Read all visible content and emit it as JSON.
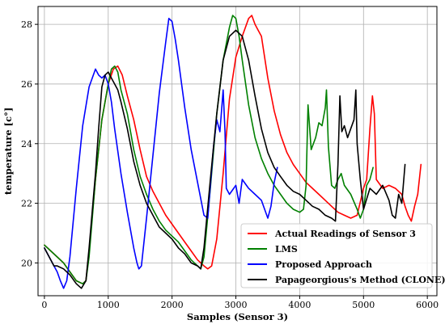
{
  "chart_data": {
    "type": "line",
    "title": "",
    "xlabel": "Samples (Sensor  3)",
    "ylabel": "temperature [c°]",
    "xlim": [
      -100,
      6150
    ],
    "ylim": [
      18.9,
      28.6
    ],
    "xticks": [
      0,
      1000,
      2000,
      3000,
      4000,
      5000,
      6000
    ],
    "yticks": [
      20,
      22,
      24,
      26,
      28
    ],
    "grid": true,
    "legend_position": "lower-right",
    "series": [
      {
        "name": "Actual Readings of Sensor 3",
        "color": "#ff0000",
        "points": [
          [
            0,
            20.6
          ],
          [
            100,
            20.4
          ],
          [
            200,
            20.2
          ],
          [
            300,
            20.0
          ],
          [
            400,
            19.7
          ],
          [
            500,
            19.4
          ],
          [
            600,
            19.3
          ],
          [
            650,
            19.4
          ],
          [
            700,
            20.4
          ],
          [
            800,
            22.8
          ],
          [
            900,
            24.8
          ],
          [
            1000,
            26.0
          ],
          [
            1080,
            26.5
          ],
          [
            1150,
            26.6
          ],
          [
            1220,
            26.3
          ],
          [
            1300,
            25.6
          ],
          [
            1400,
            24.8
          ],
          [
            1500,
            23.8
          ],
          [
            1600,
            22.9
          ],
          [
            1700,
            22.4
          ],
          [
            1800,
            22.0
          ],
          [
            1900,
            21.6
          ],
          [
            2000,
            21.3
          ],
          [
            2100,
            21.0
          ],
          [
            2200,
            20.7
          ],
          [
            2300,
            20.4
          ],
          [
            2400,
            20.1
          ],
          [
            2500,
            19.9
          ],
          [
            2560,
            19.8
          ],
          [
            2620,
            19.9
          ],
          [
            2700,
            20.8
          ],
          [
            2800,
            23.0
          ],
          [
            2900,
            25.5
          ],
          [
            3000,
            26.9
          ],
          [
            3100,
            27.6
          ],
          [
            3200,
            28.2
          ],
          [
            3250,
            28.3
          ],
          [
            3300,
            28.0
          ],
          [
            3350,
            27.8
          ],
          [
            3400,
            27.6
          ],
          [
            3500,
            26.2
          ],
          [
            3600,
            25.1
          ],
          [
            3700,
            24.3
          ],
          [
            3800,
            23.7
          ],
          [
            3900,
            23.3
          ],
          [
            4000,
            23.0
          ],
          [
            4100,
            22.7
          ],
          [
            4200,
            22.5
          ],
          [
            4300,
            22.3
          ],
          [
            4400,
            22.1
          ],
          [
            4500,
            21.9
          ],
          [
            4600,
            21.7
          ],
          [
            4700,
            21.6
          ],
          [
            4800,
            21.5
          ],
          [
            4900,
            21.6
          ],
          [
            5000,
            22.5
          ],
          [
            5050,
            22.8
          ],
          [
            5100,
            24.5
          ],
          [
            5140,
            25.6
          ],
          [
            5170,
            25.0
          ],
          [
            5200,
            22.8
          ],
          [
            5300,
            22.5
          ],
          [
            5400,
            22.6
          ],
          [
            5500,
            22.5
          ],
          [
            5600,
            22.3
          ],
          [
            5650,
            21.9
          ],
          [
            5700,
            21.6
          ],
          [
            5750,
            21.4
          ],
          [
            5800,
            21.9
          ],
          [
            5850,
            22.3
          ],
          [
            5900,
            23.3
          ]
        ]
      },
      {
        "name": "LMS",
        "color": "#008000",
        "points": [
          [
            0,
            20.6
          ],
          [
            100,
            20.4
          ],
          [
            200,
            20.2
          ],
          [
            300,
            20.0
          ],
          [
            400,
            19.7
          ],
          [
            500,
            19.4
          ],
          [
            600,
            19.3
          ],
          [
            650,
            19.4
          ],
          [
            700,
            20.2
          ],
          [
            800,
            22.8
          ],
          [
            900,
            24.8
          ],
          [
            1000,
            26.0
          ],
          [
            1050,
            26.5
          ],
          [
            1100,
            26.6
          ],
          [
            1150,
            26.4
          ],
          [
            1200,
            25.8
          ],
          [
            1300,
            25.0
          ],
          [
            1400,
            23.8
          ],
          [
            1500,
            22.9
          ],
          [
            1600,
            22.3
          ],
          [
            1700,
            21.8
          ],
          [
            1800,
            21.4
          ],
          [
            1900,
            21.1
          ],
          [
            2000,
            20.9
          ],
          [
            2100,
            20.7
          ],
          [
            2200,
            20.4
          ],
          [
            2300,
            20.1
          ],
          [
            2400,
            19.9
          ],
          [
            2450,
            19.8
          ],
          [
            2500,
            20.2
          ],
          [
            2600,
            22.5
          ],
          [
            2700,
            25.0
          ],
          [
            2800,
            26.8
          ],
          [
            2900,
            27.9
          ],
          [
            2950,
            28.3
          ],
          [
            3000,
            28.2
          ],
          [
            3050,
            27.6
          ],
          [
            3100,
            26.8
          ],
          [
            3200,
            25.3
          ],
          [
            3300,
            24.2
          ],
          [
            3400,
            23.5
          ],
          [
            3500,
            23.0
          ],
          [
            3600,
            22.6
          ],
          [
            3700,
            22.3
          ],
          [
            3800,
            22.0
          ],
          [
            3900,
            21.8
          ],
          [
            4000,
            21.7
          ],
          [
            4060,
            21.8
          ],
          [
            4100,
            22.6
          ],
          [
            4130,
            25.3
          ],
          [
            4180,
            23.8
          ],
          [
            4250,
            24.2
          ],
          [
            4300,
            24.7
          ],
          [
            4350,
            24.6
          ],
          [
            4400,
            25.2
          ],
          [
            4420,
            25.8
          ],
          [
            4450,
            23.9
          ],
          [
            4500,
            22.6
          ],
          [
            4550,
            22.5
          ],
          [
            4600,
            22.8
          ],
          [
            4650,
            23.0
          ],
          [
            4700,
            22.6
          ],
          [
            4800,
            22.3
          ],
          [
            4900,
            21.8
          ],
          [
            4950,
            21.5
          ],
          [
            5000,
            21.8
          ],
          [
            5050,
            22.6
          ],
          [
            5100,
            22.8
          ],
          [
            5150,
            23.2
          ]
        ]
      },
      {
        "name": "Proposed Approach",
        "color": "#0000ff",
        "points": [
          [
            0,
            20.5
          ],
          [
            50,
            20.3
          ],
          [
            100,
            20.1
          ],
          [
            150,
            19.9
          ],
          [
            200,
            19.7
          ],
          [
            250,
            19.4
          ],
          [
            300,
            19.15
          ],
          [
            350,
            19.4
          ],
          [
            400,
            20.2
          ],
          [
            500,
            22.5
          ],
          [
            600,
            24.6
          ],
          [
            700,
            25.9
          ],
          [
            800,
            26.5
          ],
          [
            850,
            26.3
          ],
          [
            900,
            26.2
          ],
          [
            950,
            26.3
          ],
          [
            1000,
            26.0
          ],
          [
            1050,
            25.4
          ],
          [
            1100,
            24.5
          ],
          [
            1200,
            23.0
          ],
          [
            1300,
            21.7
          ],
          [
            1400,
            20.5
          ],
          [
            1450,
            20.0
          ],
          [
            1480,
            19.8
          ],
          [
            1520,
            19.9
          ],
          [
            1600,
            21.5
          ],
          [
            1700,
            23.6
          ],
          [
            1800,
            25.7
          ],
          [
            1900,
            27.4
          ],
          [
            1950,
            28.2
          ],
          [
            2000,
            28.1
          ],
          [
            2050,
            27.5
          ],
          [
            2100,
            26.8
          ],
          [
            2200,
            25.2
          ],
          [
            2300,
            23.8
          ],
          [
            2400,
            22.7
          ],
          [
            2500,
            21.6
          ],
          [
            2560,
            21.5
          ],
          [
            2600,
            22.6
          ],
          [
            2650,
            23.9
          ],
          [
            2700,
            24.8
          ],
          [
            2750,
            24.4
          ],
          [
            2800,
            25.8
          ],
          [
            2830,
            24.4
          ],
          [
            2850,
            22.5
          ],
          [
            2900,
            22.3
          ],
          [
            3000,
            22.6
          ],
          [
            3050,
            22.0
          ],
          [
            3100,
            22.8
          ],
          [
            3200,
            22.5
          ],
          [
            3300,
            22.3
          ],
          [
            3400,
            22.1
          ],
          [
            3500,
            21.5
          ],
          [
            3550,
            21.9
          ],
          [
            3600,
            22.7
          ],
          [
            3650,
            23.2
          ]
        ]
      },
      {
        "name": "Papageorgious's Method (CLONE)",
        "color": "#000000",
        "points": [
          [
            0,
            20.5
          ],
          [
            50,
            20.3
          ],
          [
            100,
            20.1
          ],
          [
            150,
            19.9
          ],
          [
            200,
            19.9
          ],
          [
            300,
            19.8
          ],
          [
            400,
            19.6
          ],
          [
            500,
            19.3
          ],
          [
            580,
            19.15
          ],
          [
            650,
            19.4
          ],
          [
            700,
            20.5
          ],
          [
            800,
            23.0
          ],
          [
            850,
            24.5
          ],
          [
            900,
            25.9
          ],
          [
            950,
            26.3
          ],
          [
            1000,
            26.4
          ],
          [
            1050,
            26.2
          ],
          [
            1100,
            26.0
          ],
          [
            1150,
            25.8
          ],
          [
            1200,
            25.4
          ],
          [
            1300,
            24.5
          ],
          [
            1400,
            23.4
          ],
          [
            1500,
            22.6
          ],
          [
            1600,
            22.0
          ],
          [
            1700,
            21.6
          ],
          [
            1800,
            21.2
          ],
          [
            1900,
            21.0
          ],
          [
            2000,
            20.8
          ],
          [
            2100,
            20.5
          ],
          [
            2200,
            20.3
          ],
          [
            2300,
            20.0
          ],
          [
            2400,
            19.9
          ],
          [
            2450,
            19.8
          ],
          [
            2500,
            20.5
          ],
          [
            2600,
            22.8
          ],
          [
            2700,
            25.0
          ],
          [
            2800,
            26.8
          ],
          [
            2900,
            27.6
          ],
          [
            3000,
            27.8
          ],
          [
            3100,
            27.6
          ],
          [
            3200,
            26.8
          ],
          [
            3300,
            25.6
          ],
          [
            3400,
            24.5
          ],
          [
            3500,
            23.7
          ],
          [
            3600,
            23.2
          ],
          [
            3700,
            22.9
          ],
          [
            3800,
            22.6
          ],
          [
            3900,
            22.4
          ],
          [
            4000,
            22.3
          ],
          [
            4100,
            22.1
          ],
          [
            4200,
            21.9
          ],
          [
            4300,
            21.8
          ],
          [
            4400,
            21.6
          ],
          [
            4500,
            21.5
          ],
          [
            4560,
            21.4
          ],
          [
            4600,
            23.3
          ],
          [
            4630,
            25.6
          ],
          [
            4660,
            24.4
          ],
          [
            4700,
            24.6
          ],
          [
            4750,
            24.2
          ],
          [
            4800,
            24.5
          ],
          [
            4850,
            24.8
          ],
          [
            4880,
            25.8
          ],
          [
            4900,
            24.0
          ],
          [
            4950,
            22.8
          ],
          [
            5000,
            21.8
          ],
          [
            5100,
            22.5
          ],
          [
            5200,
            22.3
          ],
          [
            5300,
            22.6
          ],
          [
            5400,
            22.1
          ],
          [
            5450,
            21.6
          ],
          [
            5500,
            21.5
          ],
          [
            5550,
            22.3
          ],
          [
            5600,
            22.0
          ],
          [
            5650,
            23.3
          ]
        ]
      }
    ]
  }
}
